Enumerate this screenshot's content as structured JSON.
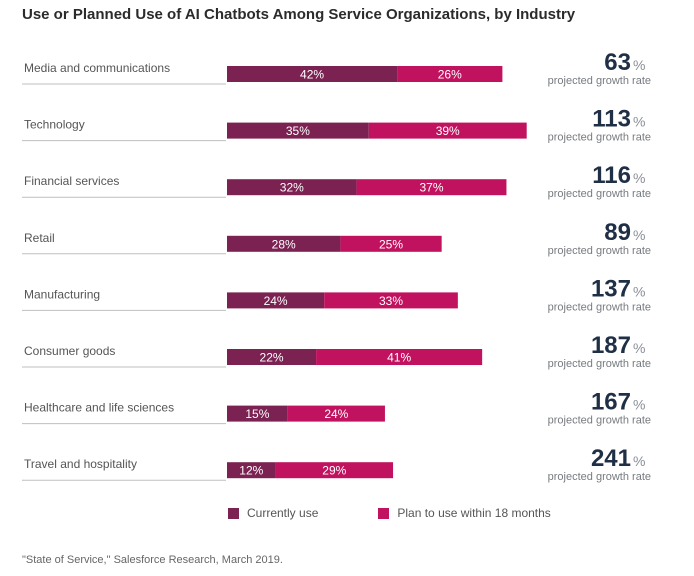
{
  "title": "Use or Planned Use of AI Chatbots Among Service Organizations, by Industry",
  "source": "\"State of Service,\" Salesforce Research, March 2019.",
  "colors": {
    "current": "#7b2252",
    "planned": "#c0125f",
    "divider": "#bfbfbf"
  },
  "growth_caption": "projected growth rate",
  "growth_suffix": "%",
  "chart_data": {
    "type": "bar",
    "orientation": "horizontal",
    "stacked": true,
    "categories": [
      "Media and communications",
      "Technology",
      "Financial services",
      "Retail",
      "Manufacturing",
      "Consumer goods",
      "Healthcare and life sciences",
      "Travel and hospitality"
    ],
    "series": [
      {
        "name": "Currently use",
        "values": [
          42,
          35,
          32,
          28,
          24,
          22,
          15,
          12
        ]
      },
      {
        "name": "Plan to use within 18 months",
        "values": [
          26,
          39,
          37,
          25,
          33,
          41,
          24,
          29
        ]
      }
    ],
    "value_labels": [
      [
        "42%",
        "35%",
        "32%",
        "28%",
        "24%",
        "22%",
        "15%",
        "12%"
      ],
      [
        "26%",
        "39%",
        "37%",
        "25%",
        "33%",
        "41%",
        "24%",
        "29%"
      ]
    ],
    "projected_growth": [
      63,
      113,
      116,
      89,
      137,
      187,
      167,
      241
    ],
    "legend_position": "bottom"
  }
}
